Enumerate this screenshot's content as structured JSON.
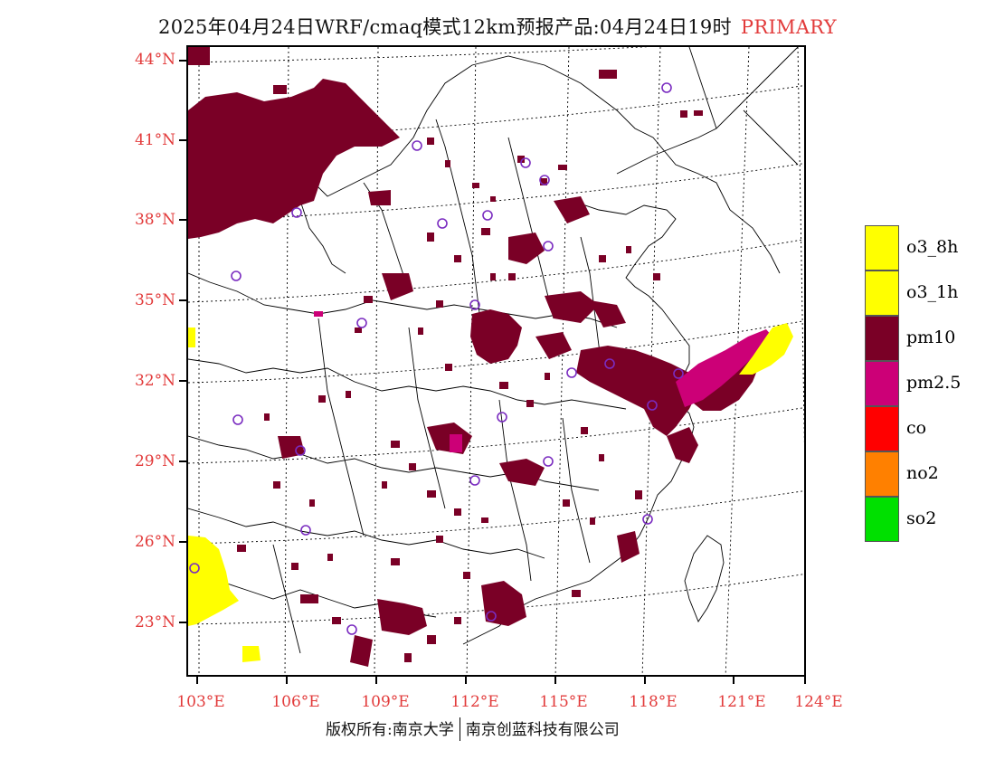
{
  "header": {
    "title": "2025年04月24日WRF/cmaq模式12km预报产品:04月24日19时",
    "tag": "PRIMARY"
  },
  "map": {
    "lat_labels": [
      "44°N",
      "41°N",
      "38°N",
      "35°N",
      "32°N",
      "29°N",
      "26°N",
      "23°N"
    ],
    "lon_labels": [
      "103°E",
      "106°E",
      "109°E",
      "112°E",
      "115°E",
      "118°E",
      "121°E",
      "124°E"
    ]
  },
  "legend": {
    "items": [
      {
        "label": "o3_8h",
        "color": "#ffff00"
      },
      {
        "label": "o3_1h",
        "color": "#ffff00"
      },
      {
        "label": "pm10",
        "color": "#7a0026"
      },
      {
        "label": "pm2.5",
        "color": "#cc0077"
      },
      {
        "label": "co",
        "color": "#ff0000"
      },
      {
        "label": "no2",
        "color": "#ff8000"
      },
      {
        "label": "so2",
        "color": "#00e000"
      }
    ]
  },
  "footer": {
    "left": "版权所有:南京大学",
    "right": "南京创蓝科技有限公司"
  }
}
